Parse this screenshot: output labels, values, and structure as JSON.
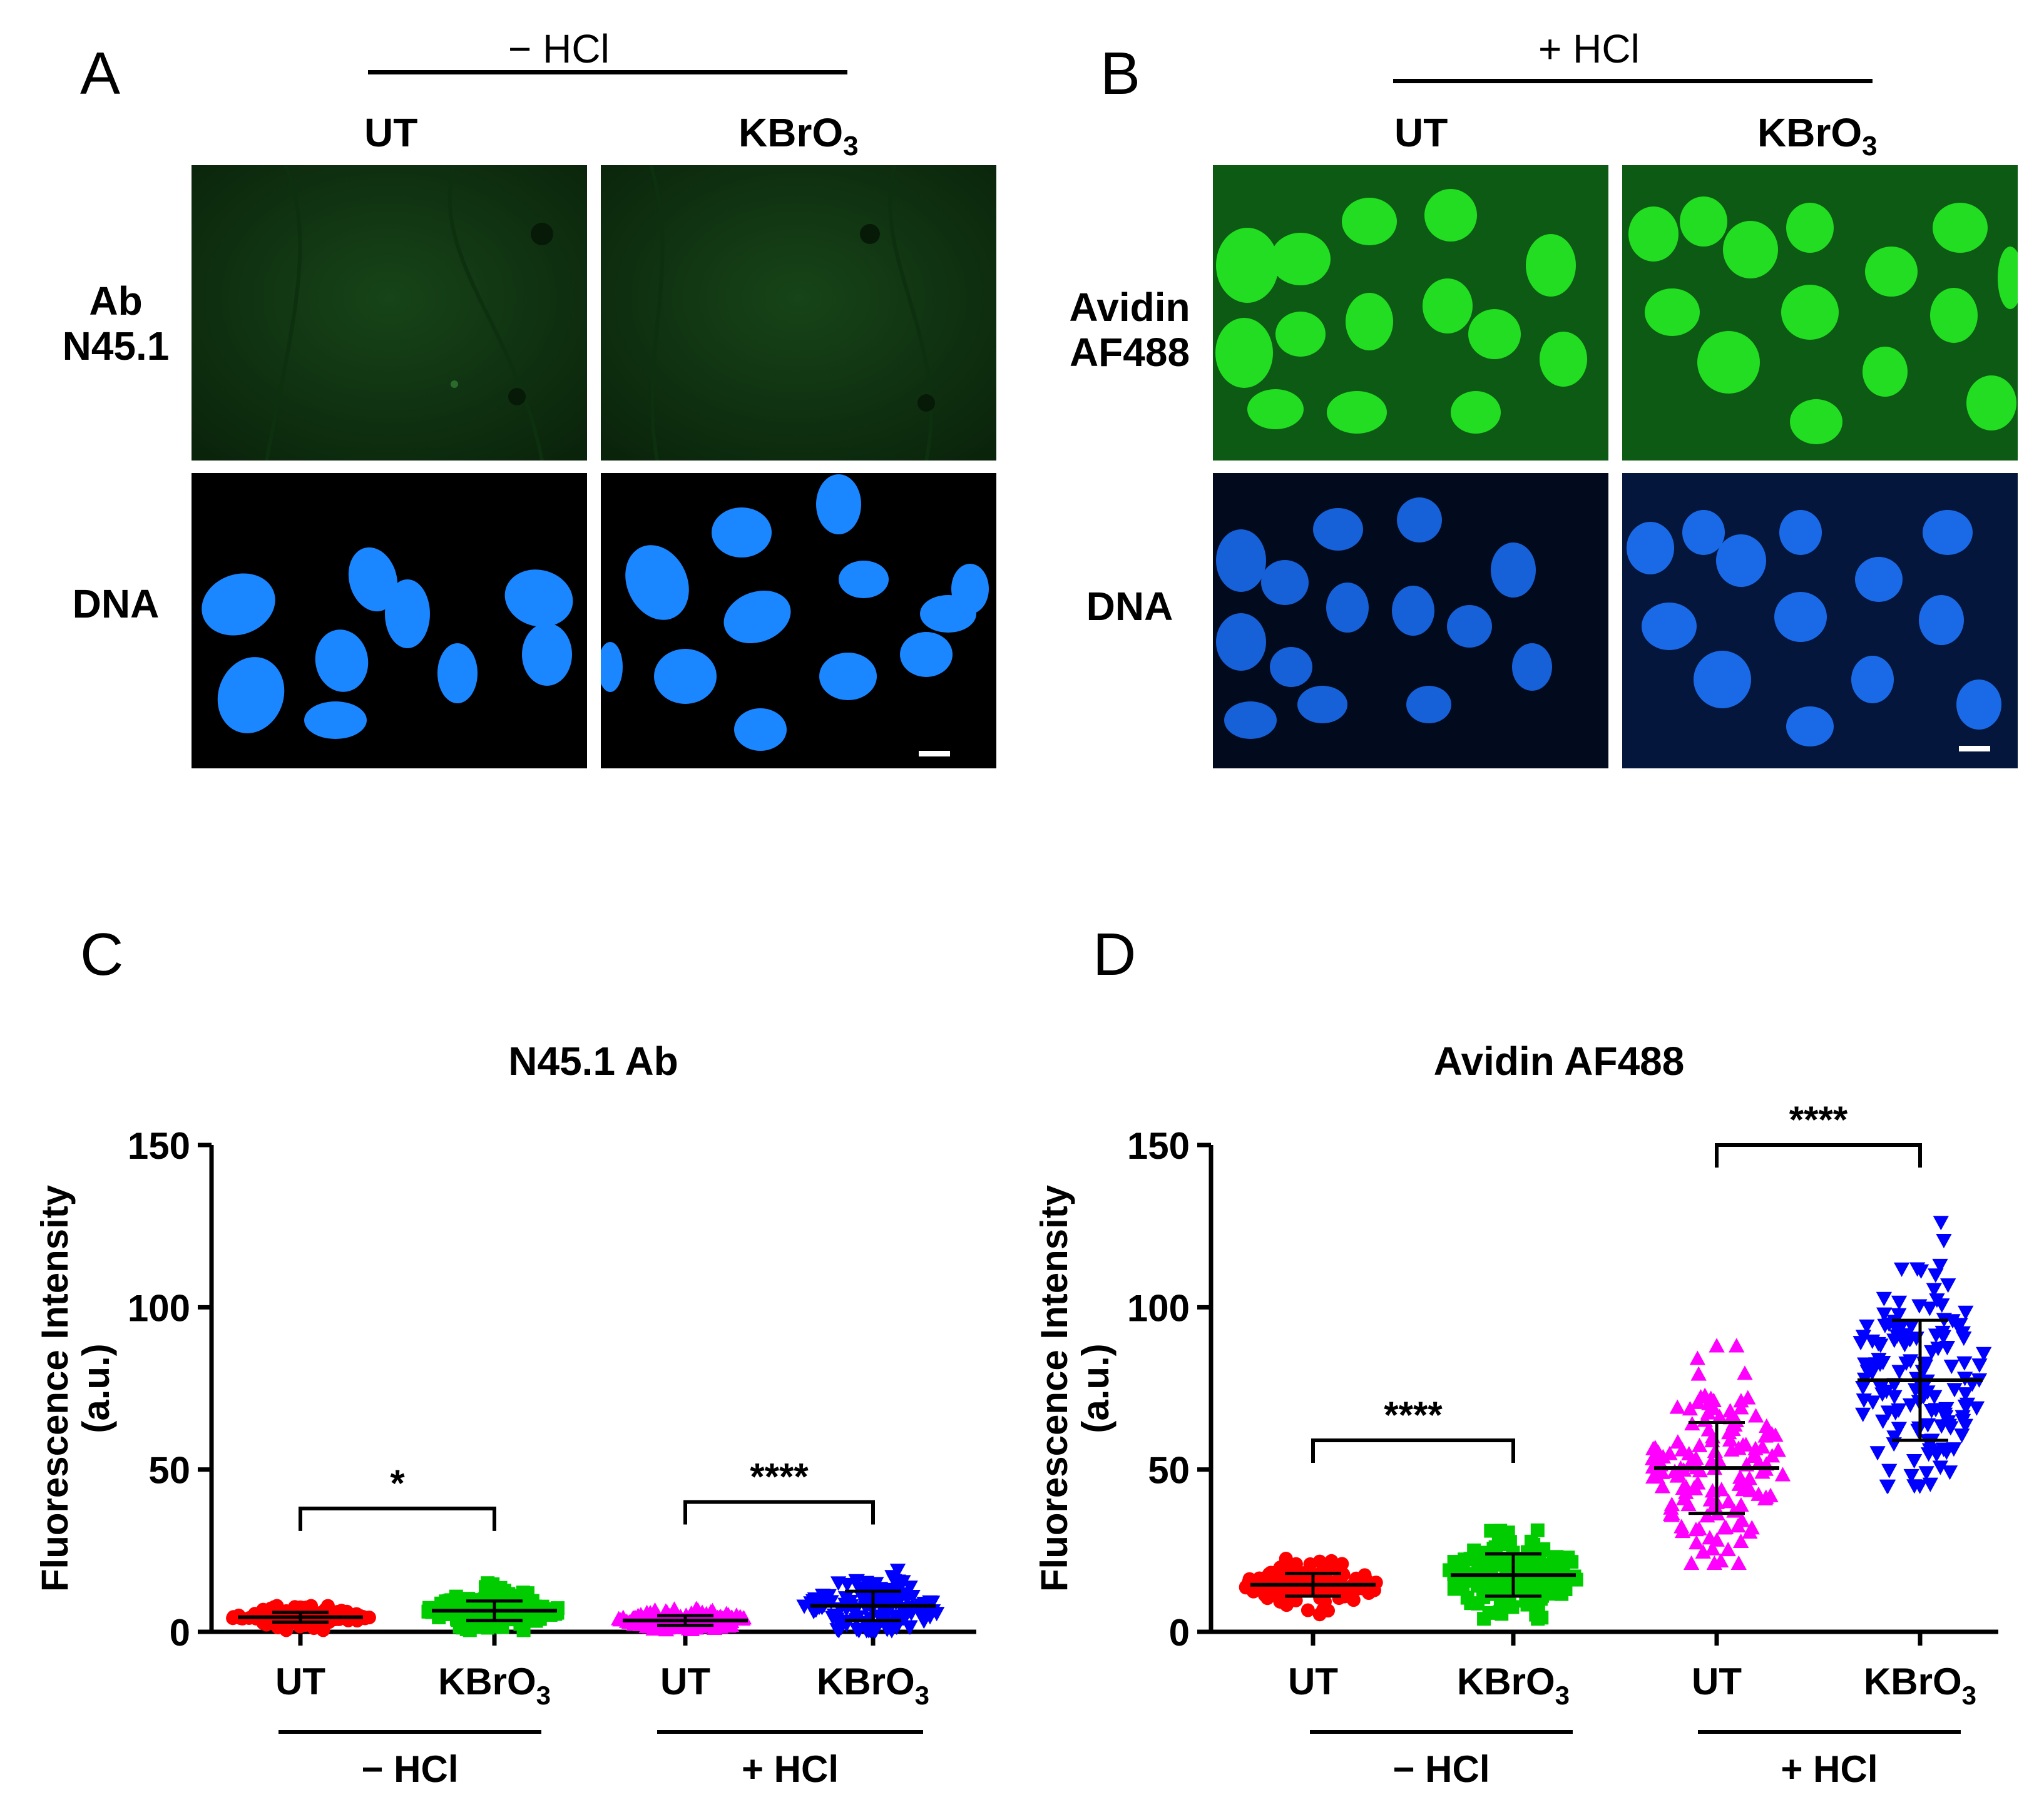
{
  "panels": {
    "a": {
      "letter": "A",
      "condition": "− HCl",
      "columns": [
        "UT",
        "KBrO",
        "3"
      ],
      "rows": {
        "stain_line1": "Ab",
        "stain_line2": "N45.1",
        "dna": "DNA"
      }
    },
    "b": {
      "letter": "B",
      "condition": "+ HCl",
      "columns": [
        "UT",
        "KBrO",
        "3"
      ],
      "rows": {
        "stain_line1": "Avidin",
        "stain_line2": "AF488",
        "dna": "DNA"
      }
    },
    "c": {
      "letter": "C"
    },
    "d": {
      "letter": "D"
    }
  },
  "colors": {
    "ut_minus": "#ff0000",
    "kbro3_minus": "#00cc00",
    "ut_plus": "#ff00ff",
    "kbro3_plus": "#0000ff",
    "green_channel": "#22dd22",
    "blue_channel": "#1a7cff"
  },
  "chart_data": [
    {
      "type": "scatter",
      "title": "N45.1 Ab",
      "ylabel_line1": "Fluorescence Intensity",
      "ylabel_line2": "(a.u.)",
      "ylim": [
        0,
        150
      ],
      "yticks": [
        "0",
        "50",
        "100",
        "150"
      ],
      "categories": [
        "UT",
        "KBrO",
        "UT",
        "KBrO"
      ],
      "category_subscripts": [
        "",
        "3",
        "",
        "3"
      ],
      "groups": [
        "− HCl",
        "+ HCl"
      ],
      "series": [
        {
          "mean": 4.5,
          "sd": 1.5,
          "min": 0.5,
          "max": 8,
          "marker": "circle",
          "color": "#ff0000"
        },
        {
          "mean": 6.5,
          "sd": 3.0,
          "min": 0.5,
          "max": 15,
          "marker": "square",
          "color": "#00cc00"
        },
        {
          "mean": 3.5,
          "sd": 1.5,
          "min": 0.5,
          "max": 7,
          "marker": "triangle-up",
          "color": "#ff00ff"
        },
        {
          "mean": 8.0,
          "sd": 4.5,
          "min": 0.5,
          "max": 24,
          "marker": "triangle-down",
          "color": "#0000ff"
        }
      ],
      "significance": [
        {
          "from": 0,
          "to": 1,
          "label": "*",
          "y": 38
        },
        {
          "from": 2,
          "to": 3,
          "label": "****",
          "y": 40
        }
      ]
    },
    {
      "type": "scatter",
      "title": "Avidin AF488",
      "ylabel_line1": "Fluorescence Intensity",
      "ylabel_line2": "(a.u.)",
      "ylim": [
        0,
        150
      ],
      "yticks": [
        "0",
        "50",
        "100",
        "150"
      ],
      "categories": [
        "UT",
        "KBrO",
        "UT",
        "KBrO"
      ],
      "category_subscripts": [
        "",
        "3",
        "",
        "3"
      ],
      "groups": [
        "− HCl",
        "+ HCl"
      ],
      "series": [
        {
          "mean": 14.5,
          "sd": 3.5,
          "min": 2,
          "max": 27,
          "marker": "circle",
          "color": "#ff0000"
        },
        {
          "mean": 17.5,
          "sd": 6.5,
          "min": 4,
          "max": 35,
          "marker": "square",
          "color": "#00cc00"
        },
        {
          "mean": 50.5,
          "sd": 14.0,
          "min": 21,
          "max": 88,
          "marker": "triangle-up",
          "color": "#ff00ff"
        },
        {
          "mean": 77.5,
          "sd": 18.5,
          "min": 45,
          "max": 130,
          "marker": "triangle-down",
          "color": "#0000ff"
        }
      ],
      "significance": [
        {
          "from": 0,
          "to": 1,
          "label": "****",
          "y": 59
        },
        {
          "from": 2,
          "to": 3,
          "label": "****",
          "y": 150
        }
      ]
    }
  ]
}
